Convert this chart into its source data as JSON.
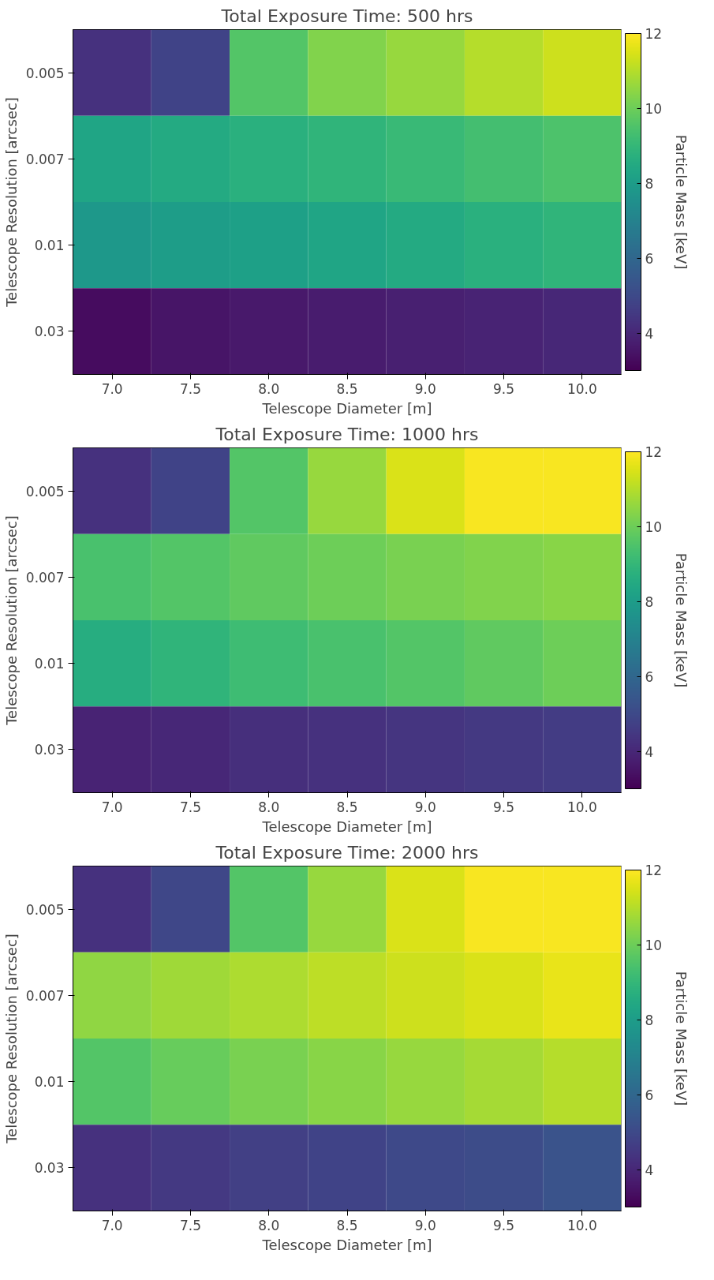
{
  "chart_data": [
    {
      "type": "heatmap",
      "title": "Total Exposure Time: 500 hrs",
      "xlabel": "Telescope Diameter [m]",
      "ylabel": "Telescope Resolution [arcsec]",
      "clabel": "Particle Mass [keV]",
      "categories": [
        "7.0",
        "7.5",
        "8.0",
        "8.5",
        "9.0",
        "9.5",
        "10.0"
      ],
      "y_categories": [
        "0.005",
        "0.007",
        "0.01",
        "0.03"
      ],
      "cells": [
        [
          4.3,
          4.8,
          9.6,
          10.3,
          10.6,
          11.0,
          11.3
        ],
        [
          8.3,
          8.5,
          8.7,
          8.9,
          9.1,
          9.3,
          9.5
        ],
        [
          7.8,
          8.0,
          8.1,
          8.3,
          8.5,
          8.7,
          8.9
        ],
        [
          3.3,
          3.5,
          3.6,
          3.7,
          3.8,
          3.9,
          4.0
        ]
      ],
      "clim": [
        3,
        12
      ],
      "cticks": [
        4,
        6,
        8,
        10,
        12
      ]
    },
    {
      "type": "heatmap",
      "title": "Total Exposure Time: 1000 hrs",
      "xlabel": "Telescope Diameter [m]",
      "ylabel": "Telescope Resolution [arcsec]",
      "clabel": "Particle Mass [keV]",
      "categories": [
        "7.0",
        "7.5",
        "8.0",
        "8.5",
        "9.0",
        "9.5",
        "10.0"
      ],
      "y_categories": [
        "0.005",
        "0.007",
        "0.01",
        "0.03"
      ],
      "cells": [
        [
          4.3,
          4.8,
          9.6,
          10.6,
          11.5,
          11.9,
          11.9
        ],
        [
          9.4,
          9.6,
          9.8,
          10.0,
          10.2,
          10.3,
          10.4
        ],
        [
          8.6,
          8.9,
          9.2,
          9.4,
          9.6,
          9.8,
          10.0
        ],
        [
          3.9,
          4.0,
          4.2,
          4.3,
          4.4,
          4.5,
          4.6
        ]
      ],
      "clim": [
        3,
        12
      ],
      "cticks": [
        4,
        6,
        8,
        10,
        12
      ]
    },
    {
      "type": "heatmap",
      "title": "Total Exposure Time: 2000 hrs",
      "xlabel": "Telescope Diameter [m]",
      "ylabel": "Telescope Resolution [arcsec]",
      "clabel": "Particle Mass [keV]",
      "categories": [
        "7.0",
        "7.5",
        "8.0",
        "8.5",
        "9.0",
        "9.5",
        "10.0"
      ],
      "y_categories": [
        "0.005",
        "0.007",
        "0.01",
        "0.03"
      ],
      "cells": [
        [
          4.3,
          4.9,
          9.6,
          10.6,
          11.5,
          11.9,
          11.9
        ],
        [
          10.5,
          10.7,
          10.9,
          11.1,
          11.3,
          11.5,
          11.7
        ],
        [
          9.6,
          9.9,
          10.2,
          10.4,
          10.6,
          10.8,
          11.0
        ],
        [
          4.3,
          4.5,
          4.7,
          4.8,
          5.0,
          5.1,
          5.3
        ]
      ],
      "clim": [
        3,
        12
      ],
      "cticks": [
        4,
        6,
        8,
        10,
        12
      ]
    }
  ]
}
